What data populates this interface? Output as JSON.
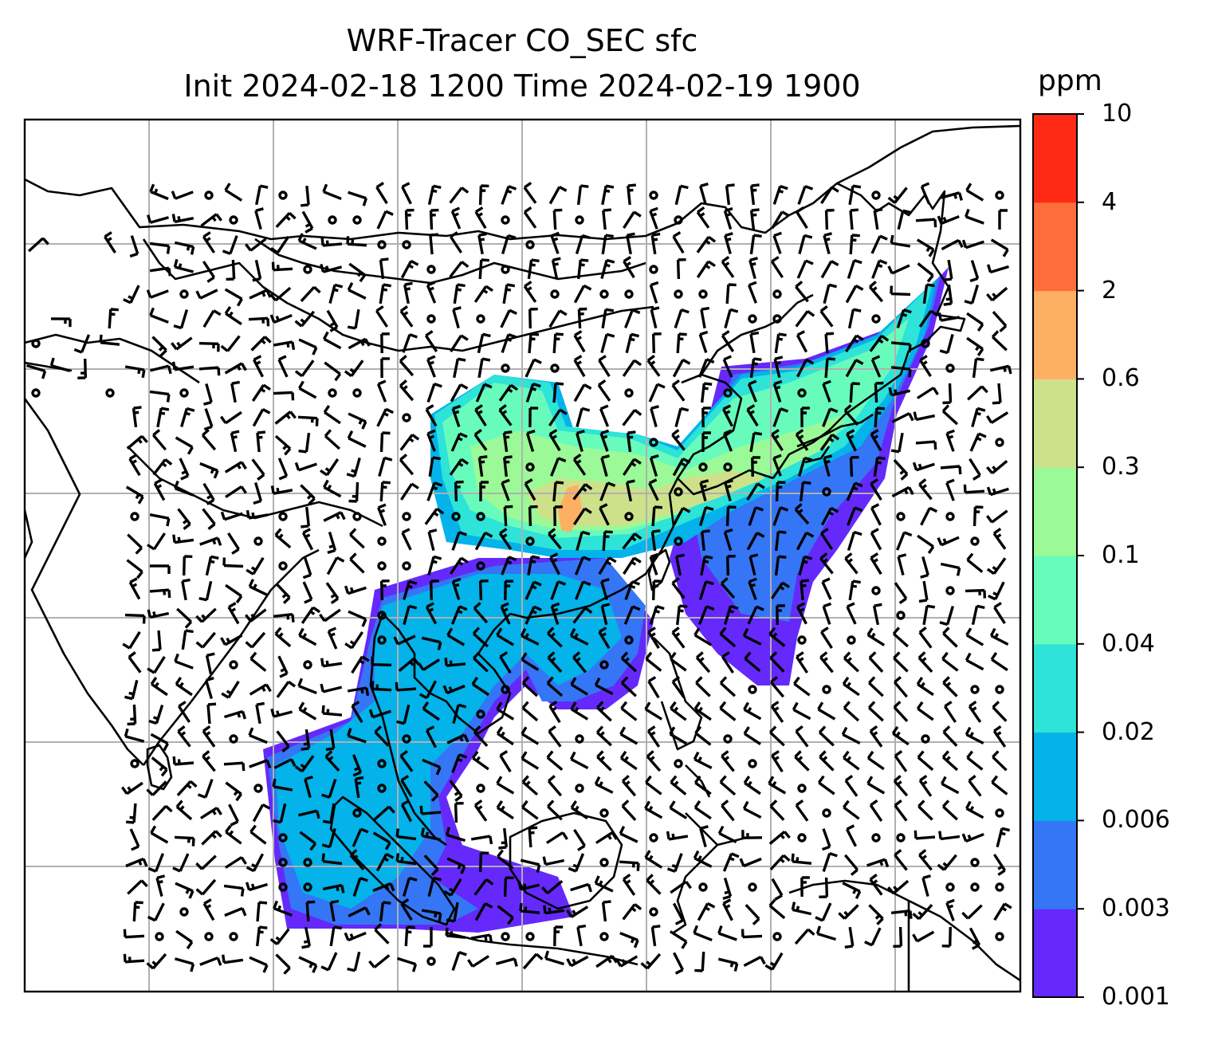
{
  "title": {
    "line1": "WRF-Tracer CO_SEC sfc",
    "line2": "Init 2024-02-18 1200 Time 2024-02-19 1900"
  },
  "colorbar": {
    "unit": "ppm",
    "levels": [
      "0.001",
      "0.003",
      "0.006",
      "0.02",
      "0.04",
      "0.1",
      "0.3",
      "0.6",
      "2",
      "4",
      "10"
    ],
    "colors": [
      "#6529fb",
      "#3476f5",
      "#03b3ea",
      "#2ee3d8",
      "#68fcbc",
      "#9bfa97",
      "#cde18b",
      "#fdaf62",
      "#fe6e3a",
      "#ff2a15"
    ]
  },
  "map": {
    "frame_color": "#000000",
    "grid_color": "#b0b0b0",
    "coast_color": "#000000",
    "barb_color": "#000000",
    "field": "CO_SEC tracer concentration (surface)",
    "icons": [
      "wind-barb-icon",
      "calm-wind-circle-icon"
    ]
  }
}
